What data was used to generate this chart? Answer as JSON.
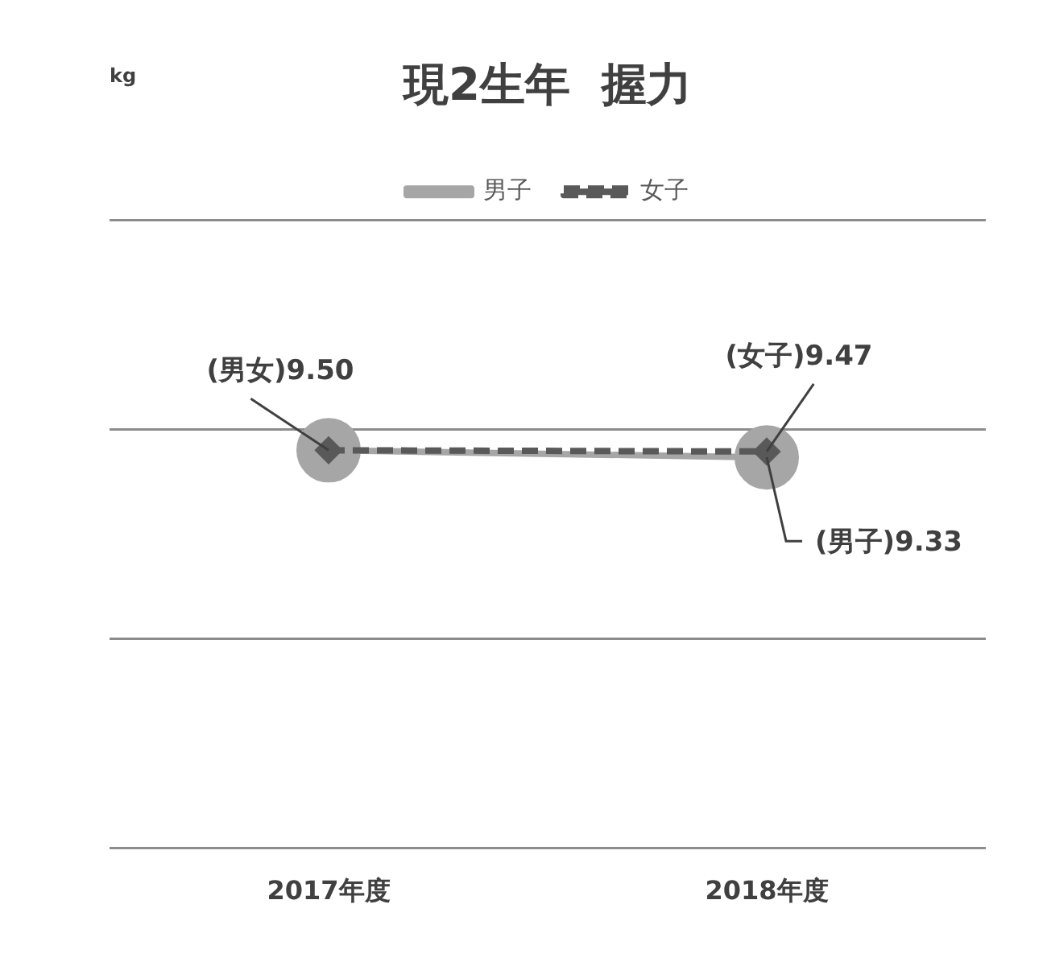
{
  "chart_data": {
    "type": "line",
    "title": "現2生年  握力",
    "categories": [
      "2017年度",
      "2018年度"
    ],
    "series": [
      {
        "name": "男子",
        "color": "#a6a6a6",
        "values": [
          9.5,
          9.33
        ],
        "value_labels": [
          "(男女)9.50",
          "(男子)9.33"
        ],
        "marker": "circle",
        "line_style": "solid"
      },
      {
        "name": "女子",
        "color": "#595959",
        "values": [
          9.5,
          9.47
        ],
        "value_labels": [
          null,
          "(女子)9.47"
        ],
        "marker": "diamond",
        "line_style": "dashed"
      }
    ],
    "annotations": [
      "kg"
    ],
    "ylim": [
      0,
      15
    ],
    "yticks": [
      {
        "value": 0,
        "label": null
      },
      {
        "value": 5,
        "label": null
      },
      {
        "value": 10,
        "label": null
      },
      {
        "value": 15,
        "label": null
      }
    ],
    "legend": "top",
    "grid": "y",
    "tick_labels": "x"
  }
}
